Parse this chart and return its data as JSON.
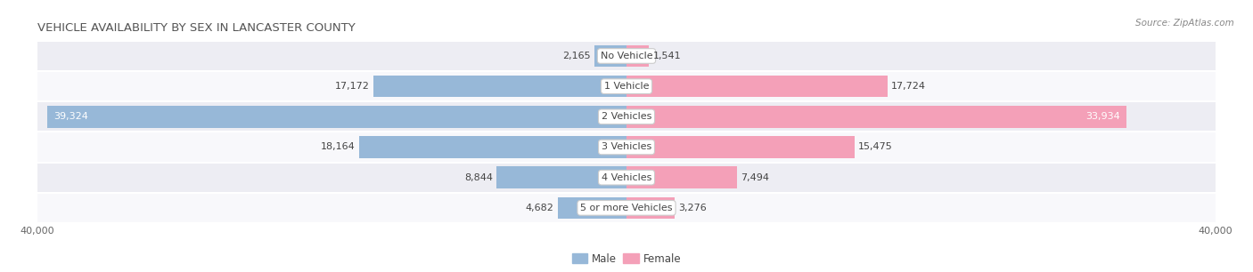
{
  "title": "VEHICLE AVAILABILITY BY SEX IN LANCASTER COUNTY",
  "source": "Source: ZipAtlas.com",
  "categories": [
    "No Vehicle",
    "1 Vehicle",
    "2 Vehicles",
    "3 Vehicles",
    "4 Vehicles",
    "5 or more Vehicles"
  ],
  "male_values": [
    2165,
    17172,
    39324,
    18164,
    8844,
    4682
  ],
  "female_values": [
    1541,
    17724,
    33934,
    15475,
    7494,
    3276
  ],
  "male_color": "#97b8d8",
  "female_color": "#f4a0b8",
  "male_color_dark": "#7a9fc0",
  "female_color_dark": "#e8789a",
  "male_label": "Male",
  "female_label": "Female",
  "xlim": 40000,
  "row_bg_odd": "#ededf3",
  "row_bg_even": "#f8f8fb",
  "title_fontsize": 9.5,
  "label_fontsize": 8.0,
  "tick_fontsize": 8.0,
  "source_fontsize": 7.5,
  "value_fontsize": 8.0
}
